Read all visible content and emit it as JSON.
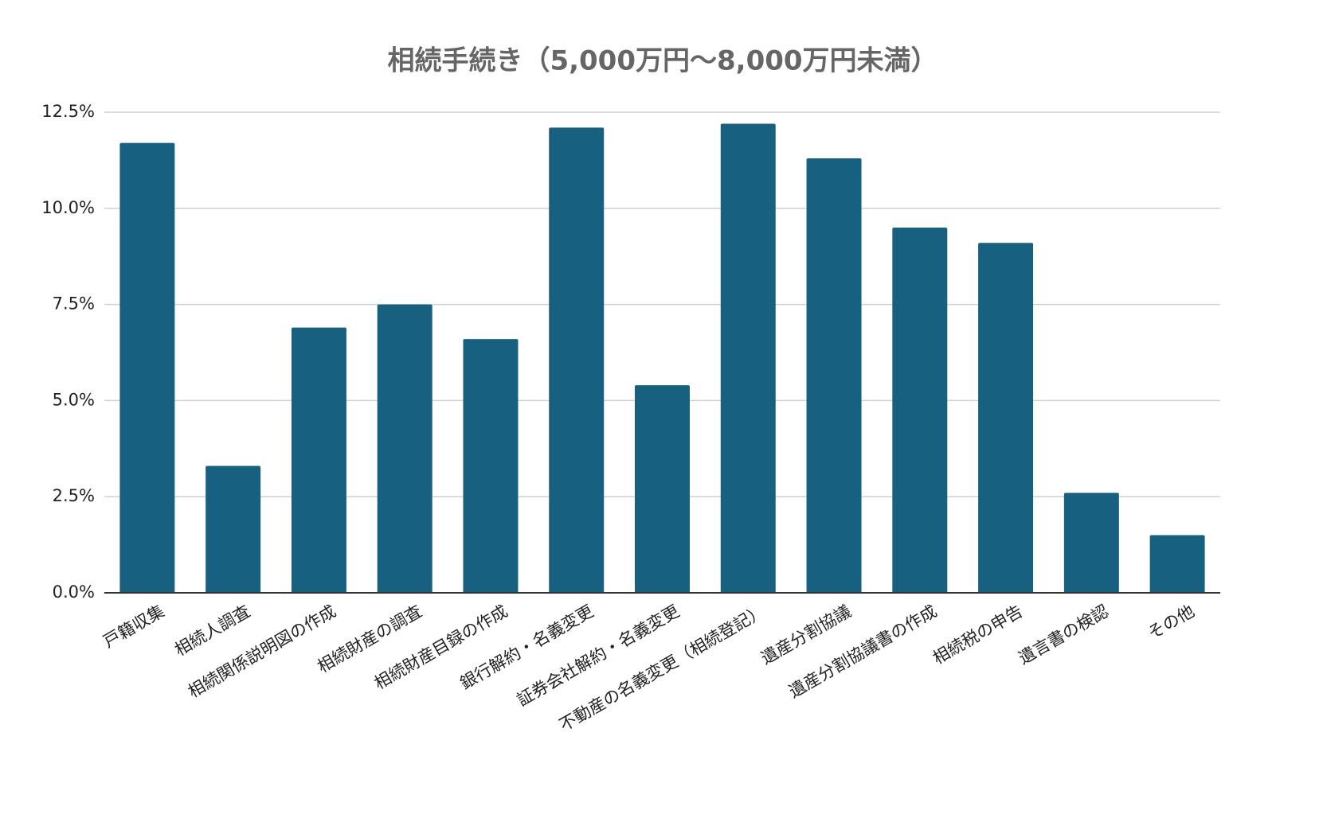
{
  "chart_data": {
    "type": "bar",
    "title": "相続手続き（5,000万円～8,000万円未満）",
    "categories": [
      "戸籍収集",
      "相続人調査",
      "相続関係説明図の作成",
      "相続財産の調査",
      "相続財産目録の作成",
      "銀行解約・名義変更",
      "証券会社解約・名義変更",
      "不動産の名義変更（相続登記）",
      "遺産分割協議",
      "遺産分割協議書の作成",
      "相続税の申告",
      "遺言書の検認",
      "その他"
    ],
    "values": [
      11.7,
      3.3,
      6.9,
      7.5,
      6.6,
      12.1,
      5.4,
      12.2,
      11.3,
      9.5,
      9.1,
      2.6,
      1.5
    ],
    "color": "#17607f",
    "ylim": [
      0,
      12.5
    ],
    "yticks": [
      {
        "value": 0,
        "label": "0.0%"
      },
      {
        "value": 2.5,
        "label": "2.5%"
      },
      {
        "value": 5,
        "label": "5.0%"
      },
      {
        "value": 7.5,
        "label": "7.5%"
      },
      {
        "value": 10,
        "label": "10.0%"
      },
      {
        "value": 12.5,
        "label": "12.5%"
      }
    ],
    "grid": true
  }
}
